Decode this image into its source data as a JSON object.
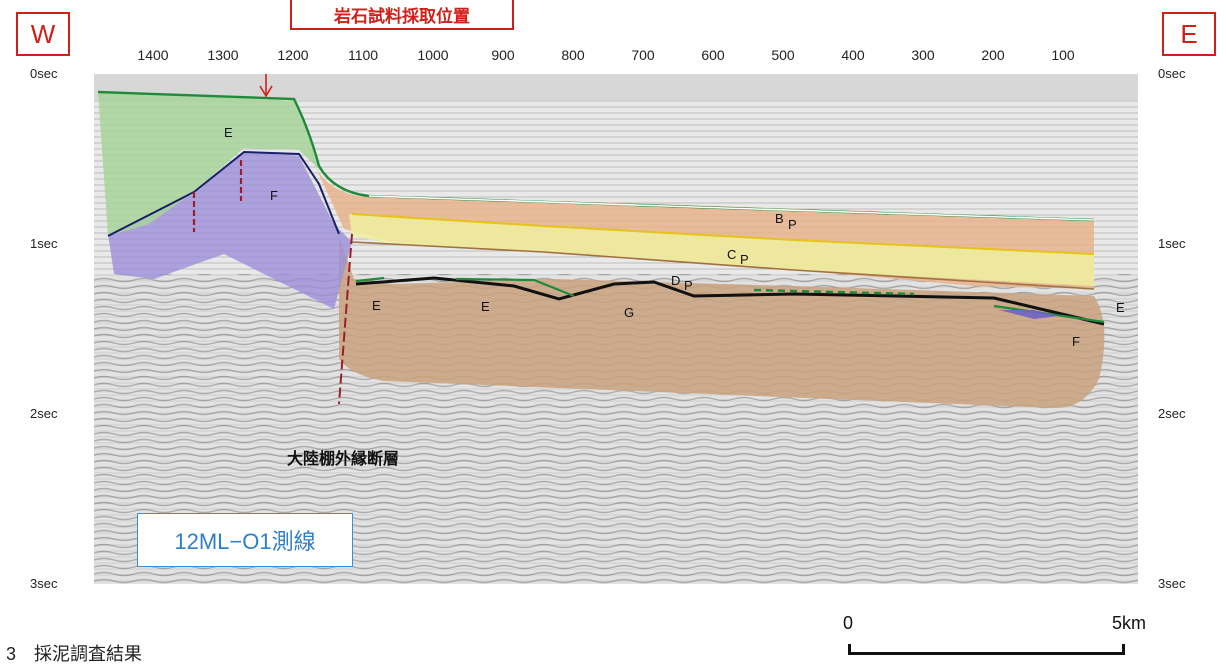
{
  "directions": {
    "west": "W",
    "east": "E"
  },
  "sample_label": "岩石試料採取位置",
  "x_ticks": [
    "1400",
    "1300",
    "1200",
    "1100",
    "1000",
    "900",
    "800",
    "700",
    "600",
    "500",
    "400",
    "300",
    "200",
    "100"
  ],
  "y_ticks_left": [
    "0sec",
    "1sec",
    "2sec",
    "3sec"
  ],
  "y_ticks_right": [
    "0sec",
    "1sec",
    "2sec",
    "3sec"
  ],
  "units": {
    "e": "E",
    "f": "F",
    "g": "G",
    "bp": "B",
    "cp": "C",
    "dp": "D",
    "sub_p": "P"
  },
  "fault_label": "大陸棚外縁断層",
  "survey_line": "12ML−O1測線",
  "scale": {
    "start": "0",
    "end": "5km"
  },
  "caption": "3　採泥調査結果",
  "colors": {
    "accent": "#d0201a",
    "line_box": "#2f7fc8",
    "unit_e": "#a8d39a",
    "unit_f": "#9c8fd8",
    "unit_bp": "#e8b48c",
    "unit_cp": "#eef0a0",
    "unit_g": "#c9a27e",
    "horizon_green": "#1f8a3a"
  }
}
